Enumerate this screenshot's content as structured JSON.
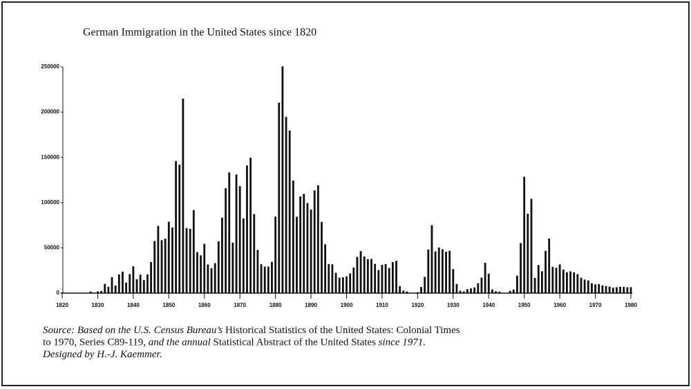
{
  "chart_data": {
    "type": "bar",
    "title": "German Immigration in the United States since 1820",
    "x": [
      1820,
      1821,
      1822,
      1823,
      1824,
      1825,
      1826,
      1827,
      1828,
      1829,
      1830,
      1831,
      1832,
      1833,
      1834,
      1835,
      1836,
      1837,
      1838,
      1839,
      1840,
      1841,
      1842,
      1843,
      1844,
      1845,
      1846,
      1847,
      1848,
      1849,
      1850,
      1851,
      1852,
      1853,
      1854,
      1855,
      1856,
      1857,
      1858,
      1859,
      1860,
      1861,
      1862,
      1863,
      1864,
      1865,
      1866,
      1867,
      1868,
      1869,
      1870,
      1871,
      1872,
      1873,
      1874,
      1875,
      1876,
      1877,
      1878,
      1879,
      1880,
      1881,
      1882,
      1883,
      1884,
      1885,
      1886,
      1887,
      1888,
      1889,
      1890,
      1891,
      1892,
      1893,
      1894,
      1895,
      1896,
      1897,
      1898,
      1899,
      1900,
      1901,
      1902,
      1903,
      1904,
      1905,
      1906,
      1907,
      1908,
      1909,
      1910,
      1911,
      1912,
      1913,
      1914,
      1915,
      1916,
      1917,
      1918,
      1919,
      1920,
      1921,
      1922,
      1923,
      1924,
      1925,
      1926,
      1927,
      1928,
      1929,
      1930,
      1931,
      1932,
      1933,
      1934,
      1935,
      1936,
      1937,
      1938,
      1939,
      1940,
      1941,
      1942,
      1943,
      1944,
      1945,
      1946,
      1947,
      1948,
      1949,
      1950,
      1951,
      1952,
      1953,
      1954,
      1955,
      1956,
      1957,
      1958,
      1959,
      1960,
      1961,
      1962,
      1963,
      1964,
      1965,
      1966,
      1967,
      1968,
      1969,
      1970,
      1971,
      1972,
      1973,
      1974,
      1975,
      1976,
      1977,
      1978,
      1979,
      1980
    ],
    "values": [
      968,
      383,
      148,
      183,
      230,
      450,
      511,
      432,
      1851,
      597,
      1976,
      2413,
      10194,
      6988,
      17686,
      8311,
      20707,
      23740,
      11683,
      21028,
      29704,
      15291,
      20370,
      14441,
      20731,
      34355,
      57561,
      74281,
      58465,
      60235,
      78896,
      72482,
      145918,
      141946,
      215009,
      71918,
      71028,
      91781,
      45310,
      41784,
      54491,
      31661,
      27529,
      33162,
      57276,
      83424,
      115892,
      133426,
      55831,
      131042,
      118225,
      82554,
      141109,
      149671,
      87291,
      47769,
      31937,
      29298,
      29313,
      34602,
      84638,
      210485,
      250630,
      194786,
      179676,
      124443,
      84403,
      106865,
      109717,
      99538,
      92427,
      113554,
      119168,
      78756,
      53989,
      32173,
      31885,
      22533,
      17111,
      17476,
      18507,
      21651,
      28304,
      40086,
      46380,
      40574,
      37564,
      37807,
      32309,
      25540,
      31283,
      32061,
      27788,
      34329,
      35734,
      7799,
      2877,
      1857,
      447,
      52,
      1001,
      6803,
      17931,
      48277,
      75091,
      46068,
      50421,
      48513,
      45778,
      46751,
      26569,
      10100,
      2670,
      1919,
      4392,
      5201,
      6346,
      10895,
      17199,
      33515,
      21520,
      4028,
      2150,
      1639,
      238,
      113,
      2519,
      4000,
      19368,
      55284,
      128592,
      87755,
      104236,
      16768,
      31101,
      24232,
      46729,
      60353,
      29000,
      28000,
      31768,
      26000,
      23000,
      24000,
      23000,
      21000,
      17000,
      15000,
      14000,
      11000,
      9700,
      10000,
      8500,
      7800,
      7200,
      6000,
      6500,
      7000,
      7000,
      6500,
      6600
    ],
    "color": "#111111",
    "xlim": [
      1820,
      1980
    ],
    "xticks": [
      1820,
      1830,
      1840,
      1850,
      1860,
      1870,
      1880,
      1890,
      1900,
      1910,
      1920,
      1930,
      1940,
      1950,
      1960,
      1970,
      1980
    ],
    "ylim": [
      0,
      250000
    ],
    "yticks": [
      0,
      50000,
      100000,
      150000,
      200000,
      250000
    ],
    "source": [
      {
        "text": "Source: Based on the U.S. Census Bureau’s ",
        "italic": true
      },
      {
        "text": "Historical Statistics of the United States: Colonial Times",
        "italic": false
      },
      {
        "text": "to 1970, Series C89-119, ",
        "italic": false
      },
      {
        "text": "and the annual ",
        "italic": true
      },
      {
        "text": "Statistical Abstract of the United States ",
        "italic": false
      },
      {
        "text": "since 1971.",
        "italic": true
      },
      {
        "text": "Designed by H.-J. Kaemmer.",
        "italic": true
      }
    ],
    "source_lines": [
      [
        0,
        1
      ],
      [
        2,
        3,
        4,
        5
      ],
      [
        6
      ]
    ]
  }
}
